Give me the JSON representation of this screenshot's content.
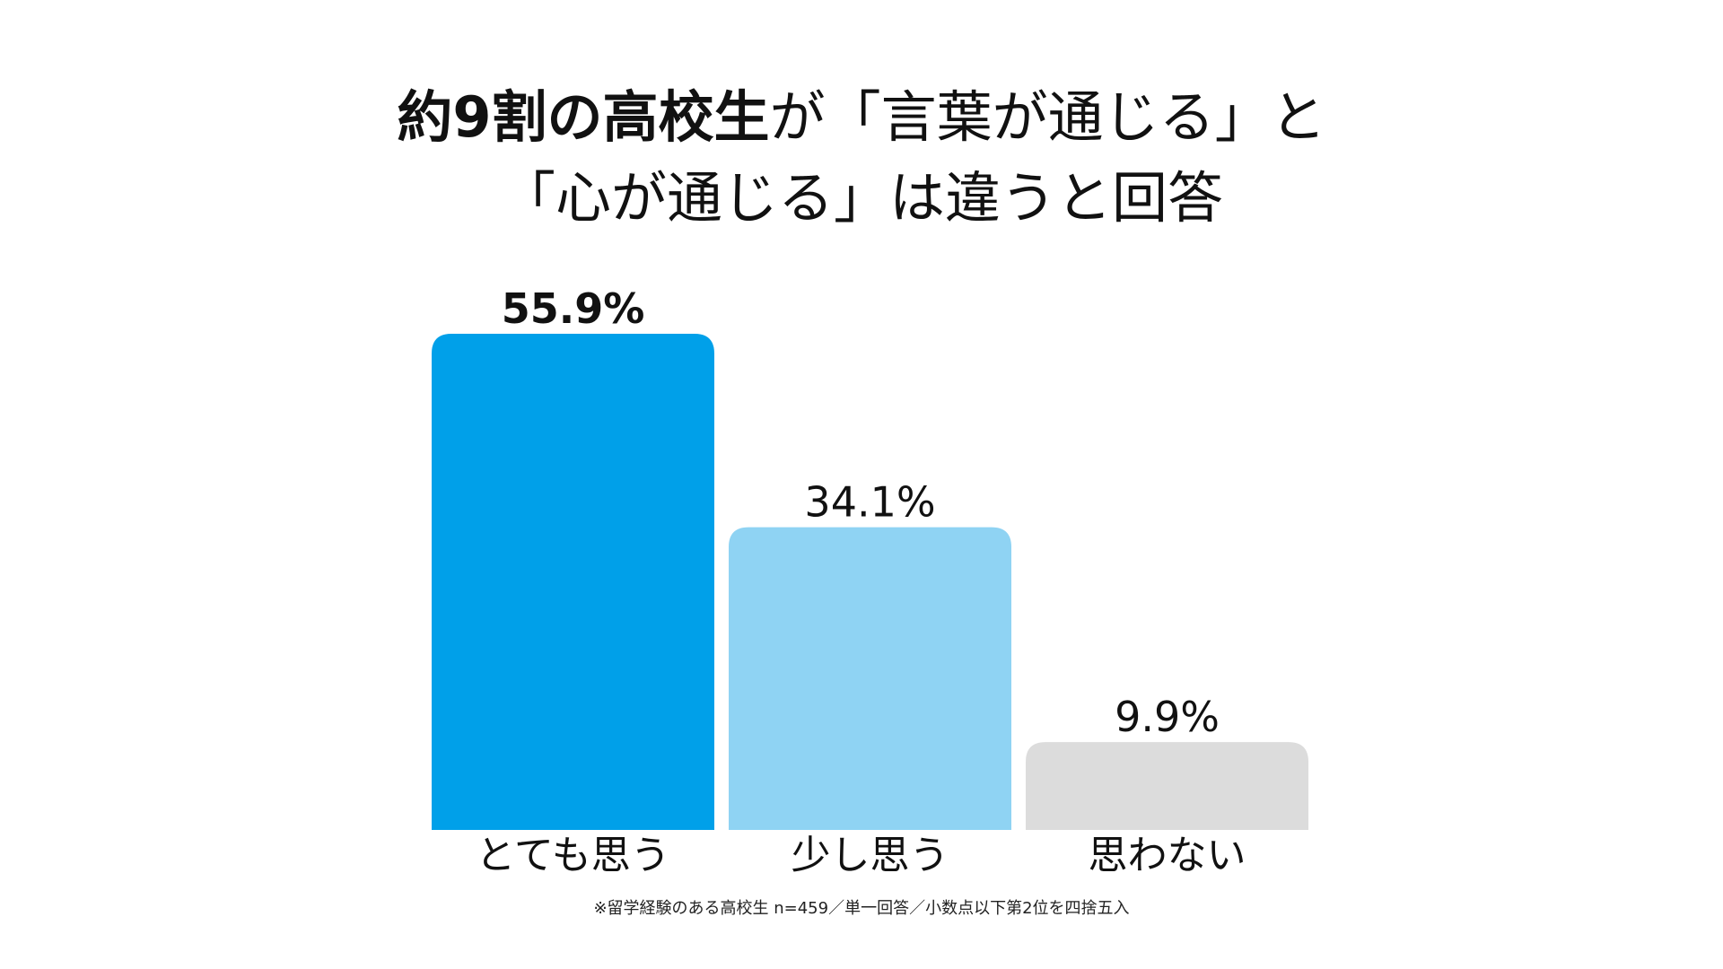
{
  "title": {
    "line1_bold": "約9割の高校生",
    "line1_rest": "が「言葉が通じる」と",
    "line2": "「心が通じる」は違うと回答"
  },
  "chart_data": {
    "type": "bar",
    "categories": [
      "とても思う",
      "少し思う",
      "思わない"
    ],
    "values": [
      55.9,
      34.1,
      9.9
    ],
    "value_labels": [
      "55.9%",
      "34.1%",
      "9.9%"
    ],
    "colors": [
      "#00A0E9",
      "#8FD3F3",
      "#DCDCDC"
    ],
    "highlight_index": 0,
    "ylim": [
      0,
      55.9
    ],
    "grid": false,
    "xlabel": "",
    "ylabel": ""
  },
  "footnote": "※留学経験のある高校生 n=459／単一回答／小数点以下第2位を四捨五入"
}
